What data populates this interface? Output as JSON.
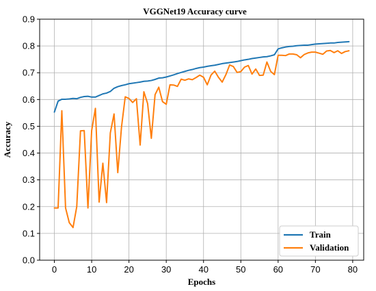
{
  "chart_data": {
    "type": "line",
    "title": "VGGNet19 Accuracy curve",
    "xlabel": "Epochs",
    "ylabel": "Accuracy",
    "xlim": [
      -3.95,
      82.95
    ],
    "ylim": [
      0.0,
      0.9
    ],
    "xticks": [
      0,
      10,
      20,
      30,
      40,
      50,
      60,
      70,
      80
    ],
    "yticks": [
      0.0,
      0.1,
      0.2,
      0.3,
      0.4,
      0.5,
      0.6,
      0.7,
      0.8,
      0.9
    ],
    "grid": true,
    "legend_position": "bottom-right",
    "series": [
      {
        "name": "Train",
        "color": "#1f77b4",
        "x": [
          0,
          1,
          2,
          3,
          4,
          5,
          6,
          7,
          8,
          9,
          10,
          11,
          12,
          13,
          14,
          15,
          16,
          17,
          18,
          19,
          20,
          21,
          22,
          23,
          24,
          25,
          26,
          27,
          28,
          29,
          30,
          31,
          32,
          33,
          34,
          35,
          36,
          37,
          38,
          39,
          40,
          41,
          42,
          43,
          44,
          45,
          46,
          47,
          48,
          49,
          50,
          51,
          52,
          53,
          54,
          55,
          56,
          57,
          58,
          59,
          60,
          61,
          62,
          63,
          64,
          65,
          66,
          67,
          68,
          69,
          70,
          71,
          72,
          73,
          74,
          75,
          76,
          77,
          78,
          79
        ],
        "values": [
          0.553,
          0.594,
          0.601,
          0.601,
          0.602,
          0.604,
          0.603,
          0.608,
          0.611,
          0.612,
          0.609,
          0.609,
          0.615,
          0.621,
          0.624,
          0.63,
          0.642,
          0.648,
          0.652,
          0.655,
          0.659,
          0.661,
          0.663,
          0.665,
          0.668,
          0.669,
          0.671,
          0.675,
          0.68,
          0.681,
          0.684,
          0.688,
          0.692,
          0.697,
          0.701,
          0.705,
          0.709,
          0.712,
          0.716,
          0.719,
          0.721,
          0.724,
          0.726,
          0.728,
          0.731,
          0.734,
          0.736,
          0.738,
          0.74,
          0.742,
          0.745,
          0.748,
          0.75,
          0.753,
          0.755,
          0.757,
          0.759,
          0.76,
          0.763,
          0.767,
          0.789,
          0.793,
          0.796,
          0.798,
          0.799,
          0.801,
          0.802,
          0.803,
          0.803,
          0.805,
          0.807,
          0.808,
          0.809,
          0.81,
          0.811,
          0.811,
          0.813,
          0.814,
          0.815,
          0.816
        ]
      },
      {
        "name": "Validation",
        "color": "#ff7f0e",
        "x": [
          0,
          1,
          2,
          3,
          4,
          5,
          6,
          7,
          8,
          9,
          10,
          11,
          12,
          13,
          14,
          15,
          16,
          17,
          18,
          19,
          20,
          21,
          22,
          23,
          24,
          25,
          26,
          27,
          28,
          29,
          30,
          31,
          32,
          33,
          34,
          35,
          36,
          37,
          38,
          39,
          40,
          41,
          42,
          43,
          44,
          45,
          46,
          47,
          48,
          49,
          50,
          51,
          52,
          53,
          54,
          55,
          56,
          57,
          58,
          59,
          60,
          61,
          62,
          63,
          64,
          65,
          66,
          67,
          68,
          69,
          70,
          71,
          72,
          73,
          74,
          75,
          76,
          77,
          78,
          79
        ],
        "values": [
          0.195,
          0.195,
          0.558,
          0.195,
          0.14,
          0.122,
          0.2,
          0.483,
          0.484,
          0.195,
          0.484,
          0.567,
          0.217,
          0.362,
          0.215,
          0.475,
          0.546,
          0.327,
          0.497,
          0.61,
          0.604,
          0.589,
          0.603,
          0.43,
          0.629,
          0.585,
          0.455,
          0.618,
          0.646,
          0.592,
          0.582,
          0.655,
          0.654,
          0.649,
          0.676,
          0.672,
          0.677,
          0.674,
          0.682,
          0.691,
          0.683,
          0.655,
          0.691,
          0.706,
          0.683,
          0.665,
          0.693,
          0.729,
          0.723,
          0.701,
          0.704,
          0.721,
          0.727,
          0.695,
          0.714,
          0.69,
          0.691,
          0.74,
          0.705,
          0.693,
          0.765,
          0.765,
          0.764,
          0.77,
          0.77,
          0.767,
          0.756,
          0.768,
          0.774,
          0.777,
          0.777,
          0.773,
          0.769,
          0.781,
          0.783,
          0.775,
          0.782,
          0.772,
          0.779,
          0.782
        ]
      }
    ]
  }
}
